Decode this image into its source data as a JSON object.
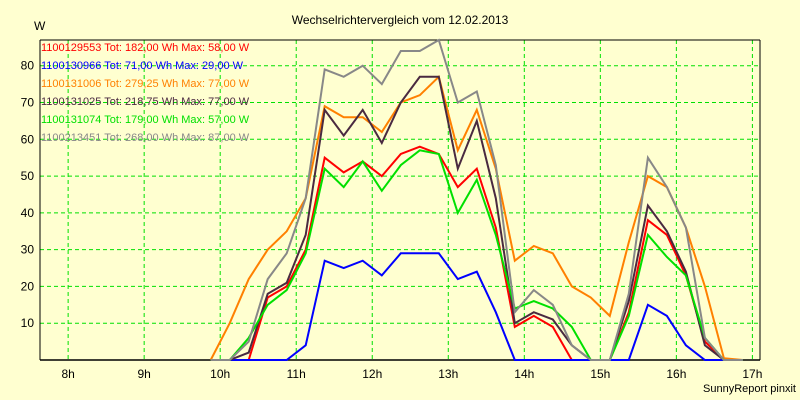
{
  "chart_data": {
    "type": "line",
    "title": "Wechselrichtervergleich vom 12.02.2013",
    "ylabel": "W",
    "xlabel": "",
    "footer": "SunnyReport pinxit",
    "ylim": [
      0,
      87
    ],
    "xlim": [
      7.63,
      17.1
    ],
    "grid": true,
    "legend_placement": "top-left",
    "yticks": [
      10,
      20,
      30,
      40,
      50,
      60,
      70,
      80
    ],
    "xticks": [
      8,
      9,
      10,
      11,
      12,
      13,
      14,
      15,
      16,
      17
    ],
    "xtick_labels": [
      "8h",
      "9h",
      "10h",
      "11h",
      "12h",
      "13h",
      "14h",
      "15h",
      "16h",
      "17h"
    ],
    "x": [
      9.875,
      10.125,
      10.375,
      10.625,
      10.875,
      11.125,
      11.375,
      11.625,
      11.875,
      12.125,
      12.375,
      12.625,
      12.875,
      13.125,
      13.375,
      13.625,
      13.875,
      14.125,
      14.375,
      14.625,
      14.875,
      15.125,
      15.375,
      15.625,
      15.875,
      16.125,
      16.375,
      16.625,
      16.875
    ],
    "series": [
      {
        "name": "1100129553",
        "legend": "1100129553 Tot: 182,00 Wh Max: 58,00 W",
        "color": "#ff0000",
        "values": [
          0,
          0,
          0,
          17,
          20,
          30,
          55,
          51,
          54,
          50,
          56,
          58,
          56,
          47,
          52,
          36,
          9,
          12,
          9,
          0,
          0,
          0,
          13,
          38,
          34,
          23,
          5,
          0,
          0
        ]
      },
      {
        "name": "1100130966",
        "legend": "1100130966 Tot: 71,00 Wh Max: 29,00 W",
        "color": "#0000ff",
        "values": [
          0,
          0,
          0,
          0,
          0,
          4,
          27,
          25,
          27,
          23,
          29,
          29,
          29,
          22,
          24,
          13,
          0,
          0,
          0,
          0,
          0,
          0,
          0,
          15,
          12,
          4,
          0,
          0,
          0
        ]
      },
      {
        "name": "1100131006",
        "legend": "1100131006 Tot: 279,25 Wh Max: 77,00 W",
        "color": "#ff8000",
        "values": [
          0,
          10,
          22,
          30,
          35,
          44,
          69,
          66,
          66,
          62,
          70,
          72,
          77,
          57,
          68,
          52,
          27,
          31,
          29,
          20,
          17,
          12,
          32,
          50,
          47,
          36,
          20,
          0.5,
          0
        ]
      },
      {
        "name": "1100131025",
        "legend": "1100131025 Tot: 218,75 Wh Max: 77,00 W",
        "color": "#4a2a40",
        "values": [
          0,
          0,
          2,
          18,
          21,
          34,
          68,
          61,
          68,
          59,
          70,
          77,
          77,
          52,
          65,
          44,
          10,
          13,
          11,
          4,
          0,
          0,
          16,
          42,
          35,
          24,
          4,
          0,
          0
        ]
      },
      {
        "name": "1100131074",
        "legend": "1100131074 Tot: 179,00 Wh Max: 57,00 W",
        "color": "#00e000",
        "values": [
          0,
          0,
          6,
          15,
          19,
          29,
          52,
          47,
          54,
          46,
          53,
          57,
          56,
          40,
          49,
          34,
          14,
          16,
          14,
          9,
          0,
          0,
          12,
          34,
          28,
          23,
          6,
          0,
          0
        ]
      },
      {
        "name": "1100213451",
        "legend": "1100213451 Tot: 268,00 Wh Max: 87,00 W",
        "color": "#888888",
        "values": [
          0,
          0,
          5,
          22,
          29,
          44,
          79,
          77,
          80,
          75,
          84,
          84,
          87,
          70,
          73,
          53,
          13,
          19,
          15,
          4,
          0,
          0,
          18,
          55,
          47,
          36,
          6,
          0,
          0
        ]
      }
    ]
  }
}
